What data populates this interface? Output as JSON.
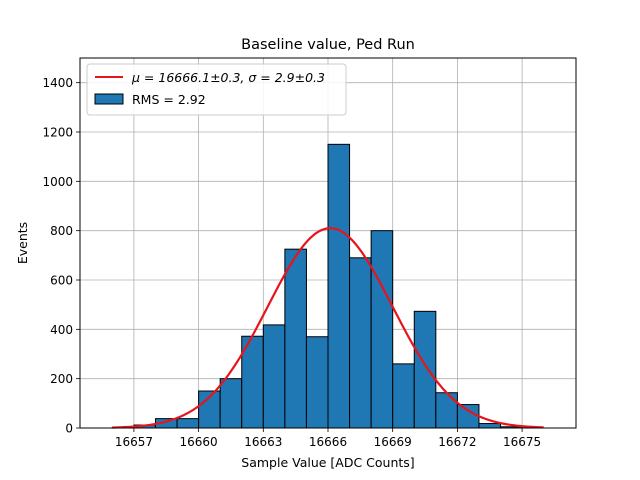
{
  "chart_data": {
    "type": "histogram",
    "title": "Baseline value, Ped Run",
    "xlabel": "Sample Value [ADC Counts]",
    "ylabel": "Events",
    "xlim": [
      16654.5,
      16677.5
    ],
    "ylim": [
      0,
      1500
    ],
    "xticks": [
      16657,
      16660,
      16663,
      16666,
      16669,
      16672,
      16675
    ],
    "yticks": [
      0,
      200,
      400,
      600,
      800,
      1000,
      1200,
      1400
    ],
    "grid": true,
    "legend_position": "top-left",
    "bin_edges": [
      16656,
      16657,
      16658,
      16659,
      16660,
      16661,
      16662,
      16663,
      16664,
      16665,
      16666,
      16667,
      16668,
      16669,
      16670,
      16671,
      16672,
      16673,
      16674,
      16675
    ],
    "counts": [
      3,
      12,
      38,
      38,
      150,
      200,
      372,
      418,
      725,
      370,
      1150,
      690,
      800,
      260,
      473,
      143,
      95,
      18,
      5
    ],
    "fit": {
      "type": "gaussian",
      "mu": 16666.1,
      "sigma": 2.9,
      "amplitude": 810,
      "x_range": [
        16656,
        16676
      ]
    },
    "series": [
      {
        "name": "$\\mu = 16666.1 \\pm 0.3$, $\\sigma = 2.9 \\pm 0.3$",
        "kind": "line",
        "color": "#ff0000"
      },
      {
        "name": "RMS = 2.92",
        "kind": "bar",
        "color": "#1f77b4"
      }
    ],
    "legend_labels": {
      "fit_mu": "μ = 16666.1±0.3,",
      "fit_sigma": "σ = 2.9±0.3",
      "hist": "RMS = 2.92"
    }
  },
  "colors": {
    "bar_fill": "#1f77b4",
    "bar_edge": "#000000",
    "fit_line": "#e8141b",
    "grid": "#b0b0b0"
  }
}
